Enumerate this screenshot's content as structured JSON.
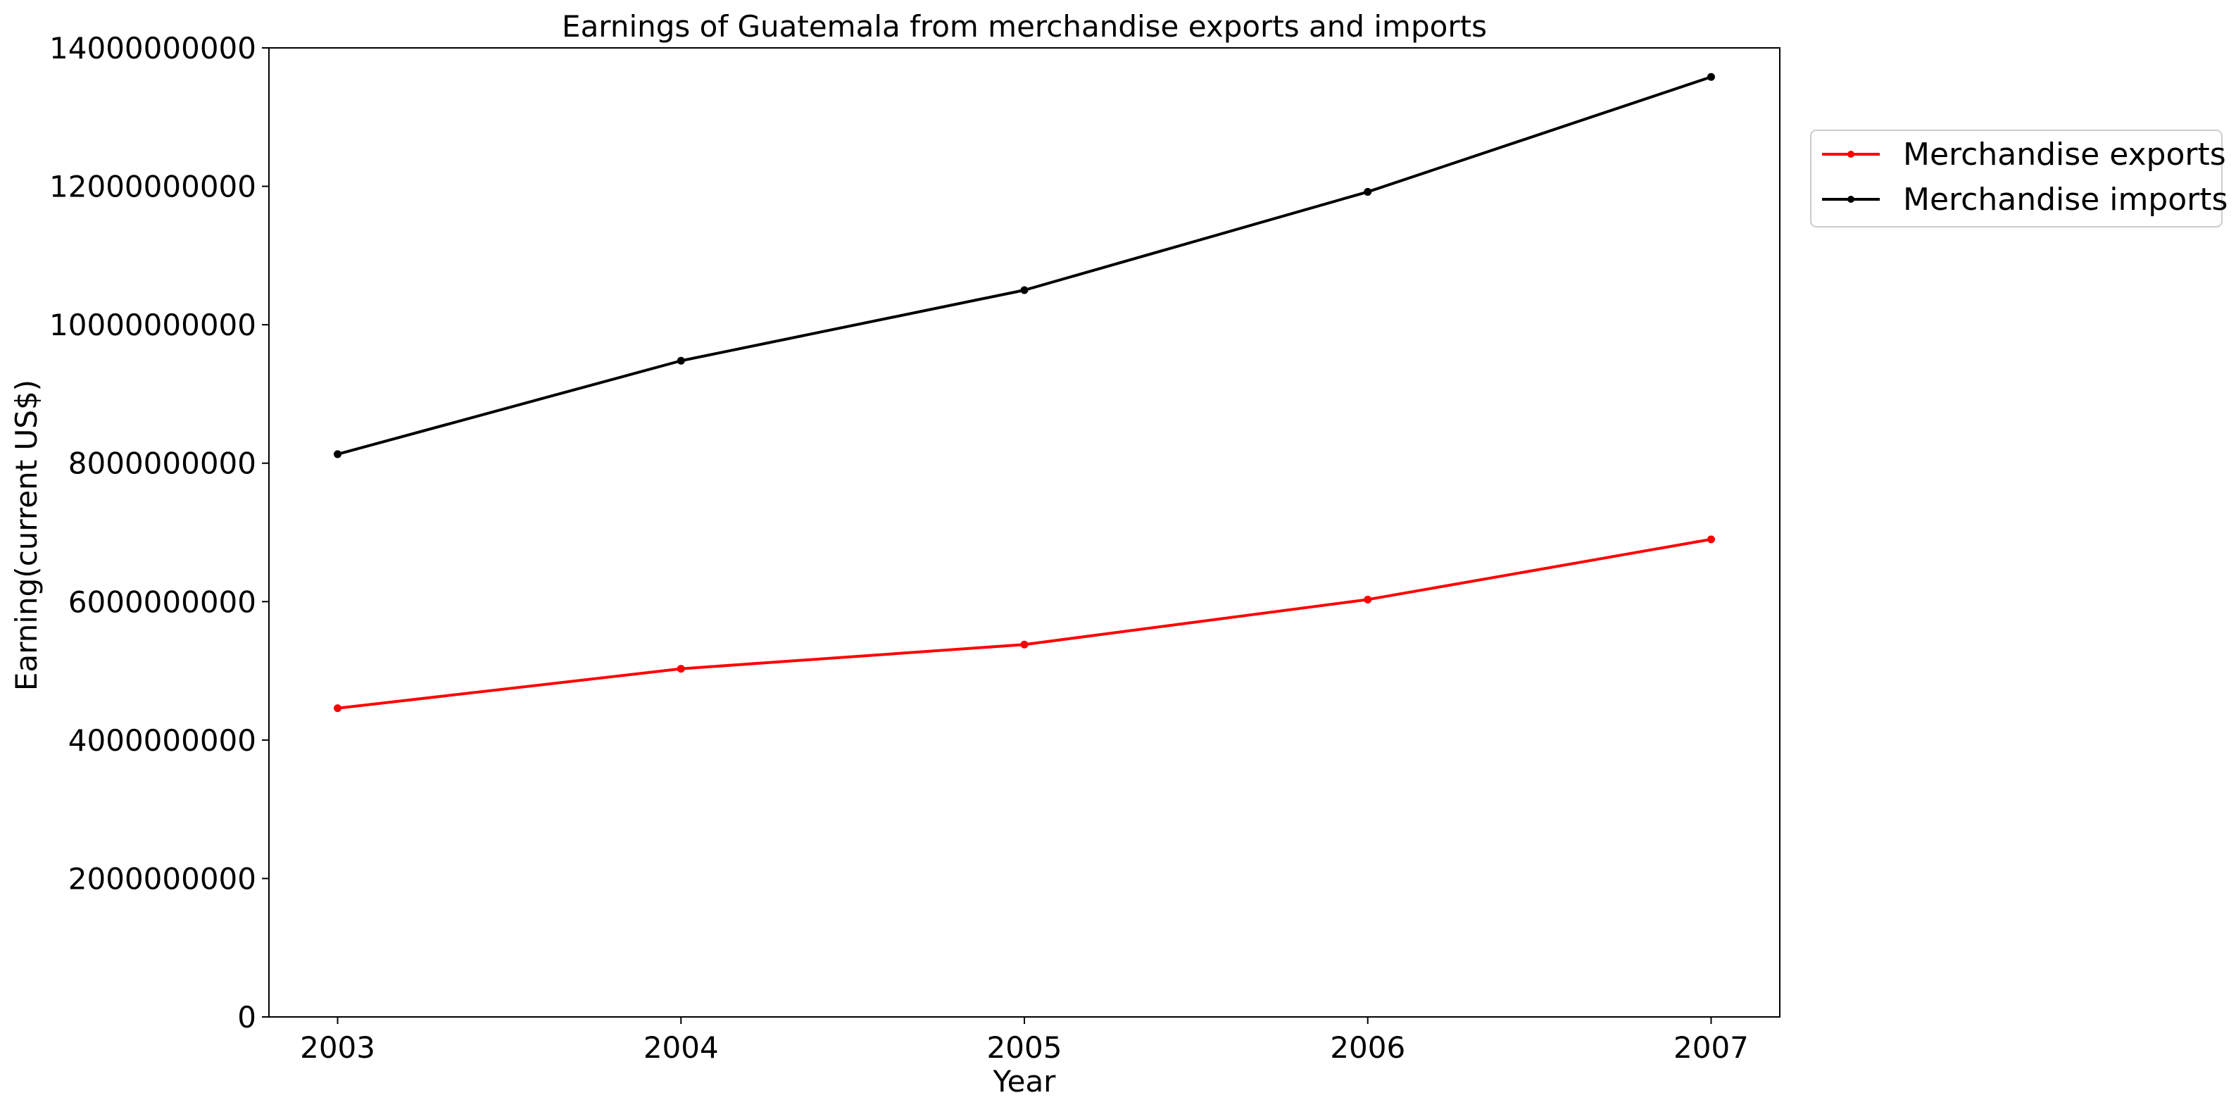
{
  "chart_data": {
    "type": "line",
    "title": "Earnings of Guatemala from merchandise exports and imports",
    "xlabel": "Year",
    "ylabel": "Earning(current US$)",
    "x": [
      "2003",
      "2004",
      "2005",
      "2006",
      "2007"
    ],
    "xlim": [
      2002.8,
      2007.2
    ],
    "ylim": [
      0,
      14000000000
    ],
    "yticks": [
      "0",
      "2000000000",
      "4000000000",
      "6000000000",
      "8000000000",
      "10000000000",
      "12000000000",
      "14000000000"
    ],
    "grid": false,
    "legend_position": "outside-top-right",
    "series": [
      {
        "name": "Merchandise exports",
        "color": "#ff0000",
        "values": [
          4460000000,
          5030000000,
          5380000000,
          6030000000,
          6900000000
        ]
      },
      {
        "name": "Merchandise imports",
        "color": "#000000",
        "values": [
          8130000000,
          9480000000,
          10500000000,
          11920000000,
          13580000000
        ]
      }
    ]
  }
}
